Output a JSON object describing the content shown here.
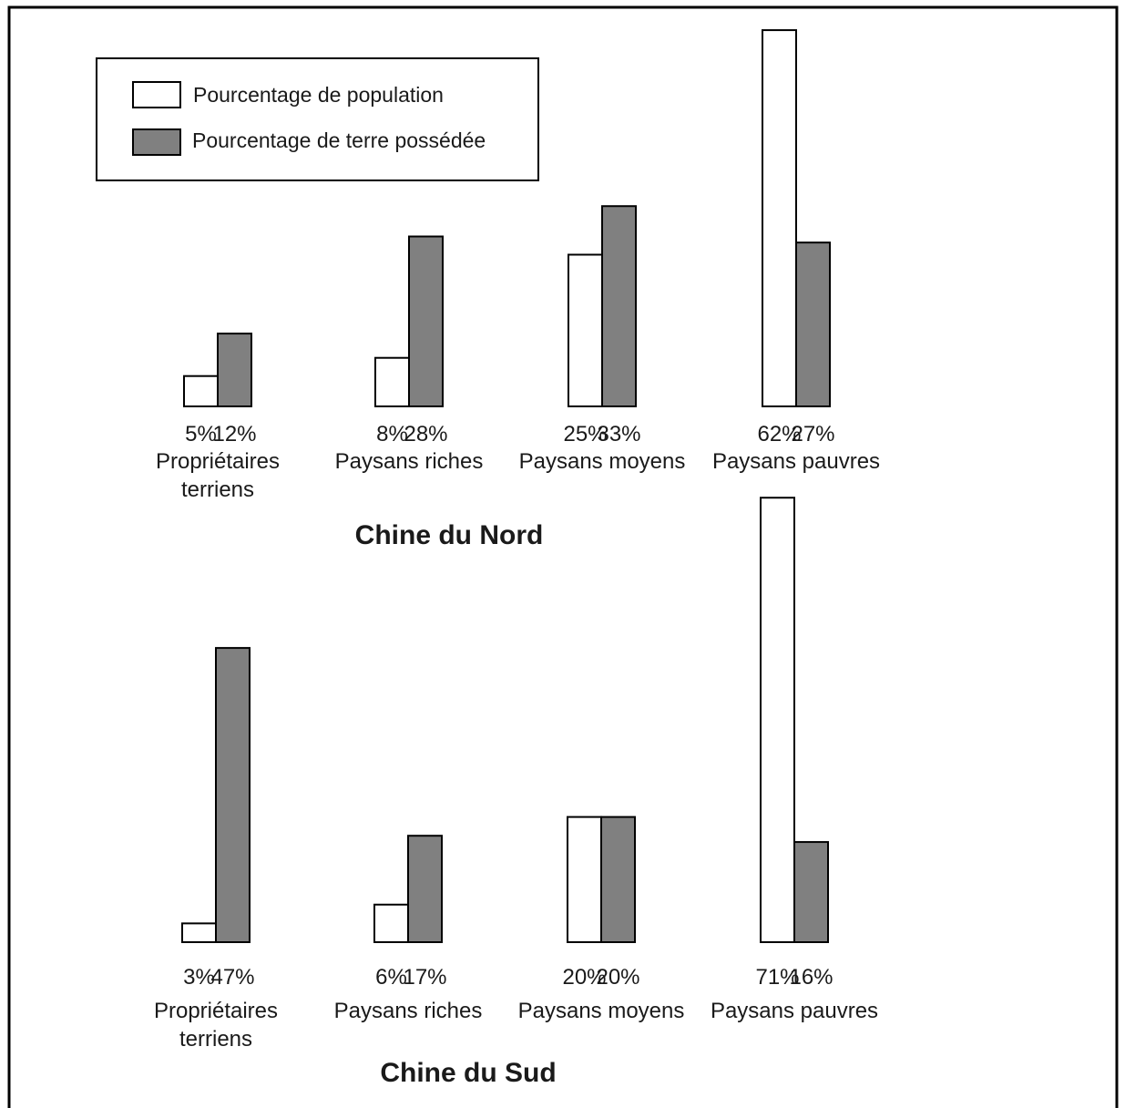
{
  "legend": {
    "population_label": "Pourcentage de population",
    "land_label": "Pourcentage de terre possédée"
  },
  "colors": {
    "population": "#ffffff",
    "land": "#808080",
    "stroke": "#000000"
  },
  "chart_data": [
    {
      "type": "bar",
      "title": "Chine du Nord",
      "categories": [
        [
          "Propriétaires",
          "terriens"
        ],
        [
          "Paysans riches"
        ],
        [
          "Paysans moyens"
        ],
        [
          "Paysans pauvres"
        ]
      ],
      "series": [
        {
          "name": "Pourcentage de population",
          "values": [
            5,
            8,
            25,
            62
          ],
          "labels": [
            "5%",
            "8%",
            "25%",
            "62%"
          ]
        },
        {
          "name": "Pourcentage de terre possédée",
          "values": [
            12,
            28,
            33,
            27
          ],
          "labels": [
            "12%",
            "28%",
            "33%",
            "27%"
          ]
        }
      ],
      "legend_position": "top-left"
    },
    {
      "type": "bar",
      "title": "Chine du Sud",
      "categories": [
        [
          "Propriétaires",
          "terriens"
        ],
        [
          "Paysans riches"
        ],
        [
          "Paysans moyens"
        ],
        [
          "Paysans pauvres"
        ]
      ],
      "series": [
        {
          "name": "Pourcentage de population",
          "values": [
            3,
            6,
            20,
            71
          ],
          "labels": [
            "3%",
            "6%",
            "20%",
            "71%"
          ]
        },
        {
          "name": "Pourcentage de terre possédée",
          "values": [
            47,
            17,
            20,
            16
          ],
          "labels": [
            "47%",
            "17%",
            "20%",
            "16%"
          ]
        }
      ]
    }
  ]
}
